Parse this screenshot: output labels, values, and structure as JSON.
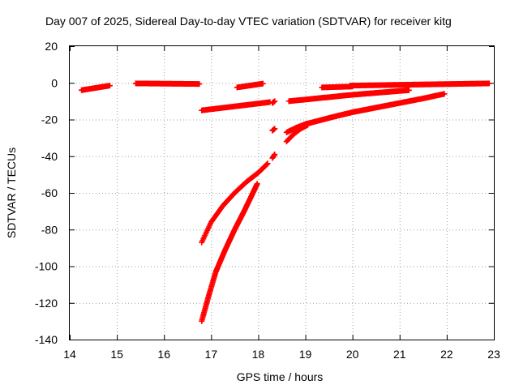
{
  "chart_data": {
    "type": "scatter",
    "title": "Day 007 of 2025, Sidereal Day-to-day VTEC variation (SDTVAR) for receiver kitg",
    "xlabel": "GPS time / hours",
    "ylabel": "SDTVAR / TECUs",
    "xlim": [
      14,
      23
    ],
    "ylim": [
      -140,
      20
    ],
    "xticks": [
      14,
      15,
      16,
      17,
      18,
      19,
      20,
      21,
      22,
      23
    ],
    "yticks": [
      20,
      0,
      -20,
      -40,
      -60,
      -80,
      -100,
      -120,
      -140
    ],
    "grid": true,
    "marker": "plus",
    "color": "#ff0000",
    "segments": [
      {
        "x": [
          14.25,
          14.85
        ],
        "y": [
          -4,
          -1.5
        ]
      },
      {
        "x": [
          15.4,
          16.75
        ],
        "y": [
          -0.3,
          -0.6
        ]
      },
      {
        "x": [
          17.55,
          18.1
        ],
        "y": [
          -2.5,
          -0.4
        ]
      },
      {
        "x": [
          19.35,
          20.0
        ],
        "y": [
          -2.5,
          -2.0
        ]
      },
      {
        "x": [
          19.95,
          22.9
        ],
        "y": [
          -1.5,
          -0.3
        ]
      },
      {
        "x": [
          16.8,
          18.25
        ],
        "y": [
          -15,
          -10.5
        ]
      },
      {
        "x": [
          18.3,
          18.35
        ],
        "y": [
          -11,
          -10
        ]
      },
      {
        "x": [
          18.65,
          20.0
        ],
        "y": [
          -10,
          -6.5
        ]
      },
      {
        "x": [
          20.0,
          21.2
        ],
        "y": [
          -6.5,
          -4
        ]
      },
      {
        "x": [
          18.3,
          18.35
        ],
        "y": [
          -26,
          -25
        ]
      },
      {
        "x": [
          18.3,
          18.35
        ],
        "y": [
          -41,
          -39
        ]
      }
    ],
    "curves": [
      {
        "x": [
          16.8,
          17.0,
          17.25,
          17.5,
          17.75,
          18.0,
          18.2
        ],
        "y": [
          -87,
          -76,
          -67,
          -60,
          -54,
          -49,
          -44
        ]
      },
      {
        "x": [
          16.8,
          16.95,
          17.1,
          17.3,
          17.5,
          17.7,
          17.85,
          17.98
        ],
        "y": [
          -130,
          -116,
          -103,
          -91,
          -80,
          -70,
          -62,
          -55
        ]
      },
      {
        "x": [
          18.6,
          18.8,
          19.0,
          19.3,
          19.6,
          20.0,
          20.5,
          21.0,
          21.5,
          21.95
        ],
        "y": [
          -27,
          -24.5,
          -22.5,
          -20.5,
          -18.5,
          -16,
          -13.5,
          -11,
          -8.5,
          -6
        ]
      },
      {
        "x": [
          18.6,
          18.75,
          18.9,
          19.05
        ],
        "y": [
          -32,
          -28,
          -25,
          -23
        ]
      }
    ]
  }
}
